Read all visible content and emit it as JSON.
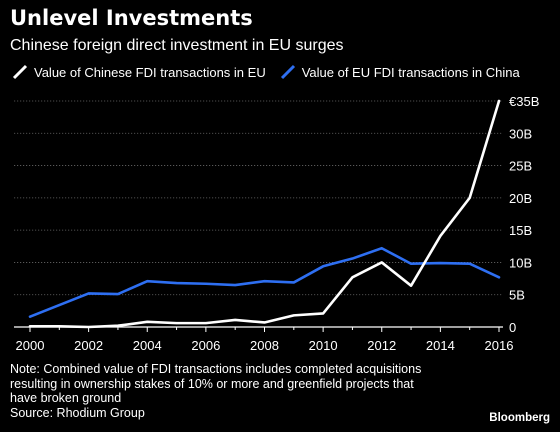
{
  "title": "Unlevel Investments",
  "subtitle": "Chinese foreign direct investment in EU surges",
  "note_lines": [
    "Note: Combined value of FDI transactions includes completed acquisitions",
    "resulting in ownership stakes of 10% or more and greenfield projects that",
    "have broken ground"
  ],
  "source": "Source: Rhodium Group",
  "brand": "Bloomberg",
  "colors": {
    "background": "#000000",
    "chinese_fdi": "#ffffff",
    "eu_fdi": "#2e6ff2",
    "grid": "#666666"
  },
  "chart_data": {
    "type": "line",
    "x": [
      2000,
      2001,
      2002,
      2003,
      2004,
      2005,
      2006,
      2007,
      2008,
      2009,
      2010,
      2011,
      2012,
      2013,
      2014,
      2015,
      2016
    ],
    "x_ticks": [
      "2000",
      "2002",
      "2004",
      "2006",
      "2008",
      "2010",
      "2012",
      "2014",
      "2016"
    ],
    "y_ticks": [
      "0",
      "5B",
      "10B",
      "15B",
      "20B",
      "25B",
      "30B",
      "€35B"
    ],
    "ylim": [
      0,
      35
    ],
    "xlim": [
      2000,
      2016
    ],
    "y_axis_side": "right",
    "grid": true,
    "legend_position": "top",
    "series": [
      {
        "name": "Value of Chinese FDI transactions in EU",
        "color": "#ffffff",
        "values": [
          0.1,
          0.1,
          0.0,
          0.2,
          0.8,
          0.6,
          0.6,
          1.1,
          0.7,
          1.8,
          2.1,
          7.7,
          10.0,
          6.4,
          14.1,
          20.0,
          35.0
        ]
      },
      {
        "name": "Value of EU FDI transactions in China",
        "color": "#2e6ff2",
        "values": [
          1.6,
          3.4,
          5.2,
          5.1,
          7.1,
          6.8,
          6.7,
          6.5,
          7.1,
          6.9,
          9.4,
          10.6,
          12.2,
          9.8,
          9.9,
          9.8,
          7.7
        ]
      }
    ]
  }
}
